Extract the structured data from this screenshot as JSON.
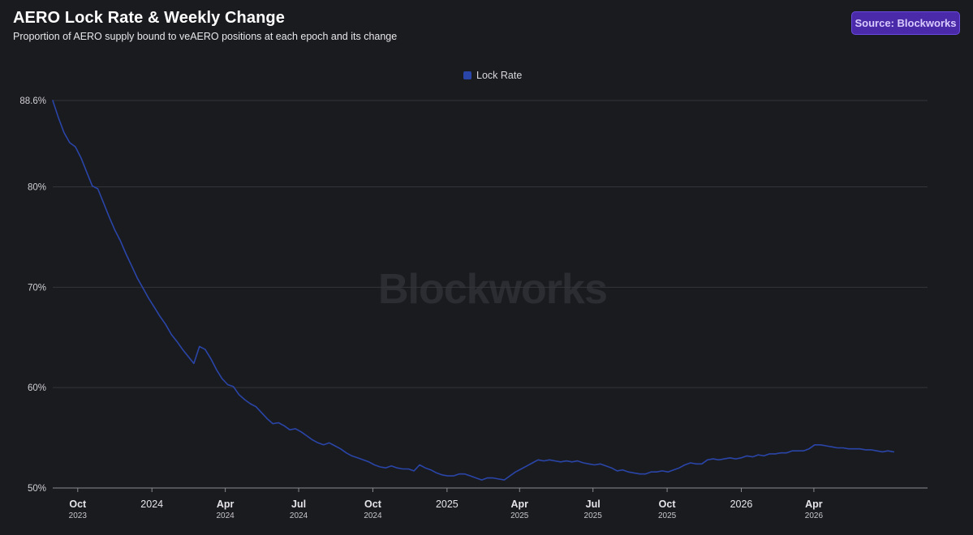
{
  "header": {
    "title": "AERO Lock Rate & Weekly Change",
    "subtitle": "Proportion of AERO supply bound to veAERO positions at each epoch and its change",
    "source_label": "Source: Blockworks"
  },
  "watermark": "Blockworks",
  "colors": {
    "series": "#2a45a8",
    "background": "#1a1b1f",
    "grid": "#34353b",
    "badge": "#4a2aa8"
  },
  "chart_data": {
    "type": "line",
    "title": "AERO Lock Rate & Weekly Change",
    "subtitle": "Proportion of AERO supply bound to veAERO positions at each epoch and its change",
    "legend": {
      "placement": "top-center",
      "entries": [
        "Lock Rate"
      ]
    },
    "grid": true,
    "ylim": [
      50,
      88.6
    ],
    "yticks": [
      {
        "value": 88.6,
        "label": "88.6%"
      },
      {
        "value": 80,
        "label": "80%"
      },
      {
        "value": 70,
        "label": "70%"
      },
      {
        "value": 60,
        "label": "60%"
      },
      {
        "value": 50,
        "label": "50%"
      }
    ],
    "xlim": [
      "2023-08-31",
      "2026-08-20"
    ],
    "xticks": [
      {
        "date": "2023-10-01",
        "label": "Oct",
        "sublabel": "2023"
      },
      {
        "date": "2024-01-01",
        "label": "2024",
        "sublabel": ""
      },
      {
        "date": "2024-04-01",
        "label": "Apr",
        "sublabel": "2024"
      },
      {
        "date": "2024-07-01",
        "label": "Jul",
        "sublabel": "2024"
      },
      {
        "date": "2024-10-01",
        "label": "Oct",
        "sublabel": "2024"
      },
      {
        "date": "2025-01-01",
        "label": "2025",
        "sublabel": ""
      },
      {
        "date": "2025-04-01",
        "label": "Apr",
        "sublabel": "2025"
      },
      {
        "date": "2025-07-01",
        "label": "Jul",
        "sublabel": "2025"
      },
      {
        "date": "2025-10-01",
        "label": "Oct",
        "sublabel": "2025"
      },
      {
        "date": "2026-01-01",
        "label": "2026",
        "sublabel": ""
      },
      {
        "date": "2026-04-01",
        "label": "Apr",
        "sublabel": "2026"
      }
    ],
    "series": [
      {
        "name": "Lock Rate",
        "color": "#2a45a8",
        "points": [
          [
            "2023-08-31",
            88.6
          ],
          [
            "2023-09-07",
            86.9
          ],
          [
            "2023-09-14",
            85.4
          ],
          [
            "2023-09-21",
            84.4
          ],
          [
            "2023-09-28",
            84.0
          ],
          [
            "2023-10-05",
            82.9
          ],
          [
            "2023-10-12",
            81.5
          ],
          [
            "2023-10-19",
            80.1
          ],
          [
            "2023-10-26",
            79.8
          ],
          [
            "2023-11-02",
            78.4
          ],
          [
            "2023-11-09",
            77.0
          ],
          [
            "2023-11-16",
            75.7
          ],
          [
            "2023-11-23",
            74.6
          ],
          [
            "2023-11-30",
            73.3
          ],
          [
            "2023-12-07",
            72.1
          ],
          [
            "2023-12-14",
            70.9
          ],
          [
            "2023-12-21",
            69.9
          ],
          [
            "2023-12-28",
            68.9
          ],
          [
            "2024-01-04",
            68.0
          ],
          [
            "2024-01-11",
            67.1
          ],
          [
            "2024-01-18",
            66.3
          ],
          [
            "2024-01-25",
            65.3
          ],
          [
            "2024-02-01",
            64.6
          ],
          [
            "2024-02-08",
            63.8
          ],
          [
            "2024-02-15",
            63.1
          ],
          [
            "2024-02-22",
            62.4
          ],
          [
            "2024-02-29",
            64.1
          ],
          [
            "2024-03-07",
            63.8
          ],
          [
            "2024-03-14",
            62.9
          ],
          [
            "2024-03-21",
            61.8
          ],
          [
            "2024-03-28",
            60.9
          ],
          [
            "2024-04-04",
            60.3
          ],
          [
            "2024-04-11",
            60.1
          ],
          [
            "2024-04-18",
            59.3
          ],
          [
            "2024-04-25",
            58.8
          ],
          [
            "2024-05-02",
            58.4
          ],
          [
            "2024-05-09",
            58.1
          ],
          [
            "2024-05-16",
            57.5
          ],
          [
            "2024-05-23",
            56.9
          ],
          [
            "2024-05-30",
            56.4
          ],
          [
            "2024-06-06",
            56.5
          ],
          [
            "2024-06-13",
            56.2
          ],
          [
            "2024-06-20",
            55.8
          ],
          [
            "2024-06-27",
            55.9
          ],
          [
            "2024-07-04",
            55.6
          ],
          [
            "2024-07-11",
            55.2
          ],
          [
            "2024-07-18",
            54.8
          ],
          [
            "2024-07-25",
            54.5
          ],
          [
            "2024-08-01",
            54.3
          ],
          [
            "2024-08-08",
            54.5
          ],
          [
            "2024-08-15",
            54.2
          ],
          [
            "2024-08-22",
            53.9
          ],
          [
            "2024-08-29",
            53.5
          ],
          [
            "2024-09-05",
            53.2
          ],
          [
            "2024-09-12",
            53.0
          ],
          [
            "2024-09-19",
            52.8
          ],
          [
            "2024-09-26",
            52.6
          ],
          [
            "2024-10-03",
            52.3
          ],
          [
            "2024-10-10",
            52.1
          ],
          [
            "2024-10-17",
            52.0
          ],
          [
            "2024-10-24",
            52.2
          ],
          [
            "2024-10-31",
            52.0
          ],
          [
            "2024-11-07",
            51.9
          ],
          [
            "2024-11-14",
            51.9
          ],
          [
            "2024-11-21",
            51.7
          ],
          [
            "2024-11-28",
            52.3
          ],
          [
            "2024-12-05",
            52.0
          ],
          [
            "2024-12-12",
            51.8
          ],
          [
            "2024-12-19",
            51.5
          ],
          [
            "2024-12-26",
            51.3
          ],
          [
            "2025-01-02",
            51.2
          ],
          [
            "2025-01-09",
            51.2
          ],
          [
            "2025-01-16",
            51.4
          ],
          [
            "2025-01-23",
            51.4
          ],
          [
            "2025-01-30",
            51.2
          ],
          [
            "2025-02-06",
            51.0
          ],
          [
            "2025-02-13",
            50.8
          ],
          [
            "2025-02-20",
            51.0
          ],
          [
            "2025-02-27",
            51.0
          ],
          [
            "2025-03-06",
            50.9
          ],
          [
            "2025-03-13",
            50.8
          ],
          [
            "2025-03-20",
            51.2
          ],
          [
            "2025-03-27",
            51.6
          ],
          [
            "2025-04-03",
            51.9
          ],
          [
            "2025-04-10",
            52.2
          ],
          [
            "2025-04-17",
            52.5
          ],
          [
            "2025-04-24",
            52.8
          ],
          [
            "2025-05-01",
            52.7
          ],
          [
            "2025-05-08",
            52.8
          ],
          [
            "2025-05-15",
            52.7
          ],
          [
            "2025-05-22",
            52.6
          ],
          [
            "2025-05-29",
            52.7
          ],
          [
            "2025-06-05",
            52.6
          ],
          [
            "2025-06-12",
            52.7
          ],
          [
            "2025-06-19",
            52.5
          ],
          [
            "2025-06-26",
            52.4
          ],
          [
            "2025-07-03",
            52.3
          ],
          [
            "2025-07-10",
            52.4
          ],
          [
            "2025-07-17",
            52.2
          ],
          [
            "2025-07-24",
            52.0
          ],
          [
            "2025-07-31",
            51.7
          ],
          [
            "2025-08-07",
            51.8
          ],
          [
            "2025-08-14",
            51.6
          ],
          [
            "2025-08-21",
            51.5
          ],
          [
            "2025-08-28",
            51.4
          ],
          [
            "2025-09-04",
            51.4
          ],
          [
            "2025-09-11",
            51.6
          ],
          [
            "2025-09-18",
            51.6
          ],
          [
            "2025-09-25",
            51.7
          ],
          [
            "2025-10-02",
            51.6
          ],
          [
            "2025-10-09",
            51.8
          ],
          [
            "2025-10-16",
            52.0
          ],
          [
            "2025-10-23",
            52.3
          ],
          [
            "2025-10-30",
            52.5
          ],
          [
            "2025-11-06",
            52.4
          ],
          [
            "2025-11-13",
            52.4
          ],
          [
            "2025-11-20",
            52.8
          ],
          [
            "2025-11-27",
            52.9
          ],
          [
            "2025-12-04",
            52.8
          ],
          [
            "2025-12-11",
            52.9
          ],
          [
            "2025-12-18",
            53.0
          ],
          [
            "2025-12-25",
            52.9
          ],
          [
            "2026-01-01",
            53.0
          ],
          [
            "2026-01-08",
            53.2
          ],
          [
            "2026-01-15",
            53.1
          ],
          [
            "2026-01-22",
            53.3
          ],
          [
            "2026-01-29",
            53.2
          ],
          [
            "2026-02-05",
            53.4
          ],
          [
            "2026-02-12",
            53.4
          ],
          [
            "2026-02-19",
            53.5
          ],
          [
            "2026-02-26",
            53.5
          ],
          [
            "2026-03-05",
            53.7
          ],
          [
            "2026-03-12",
            53.7
          ],
          [
            "2026-03-19",
            53.7
          ],
          [
            "2026-03-26",
            53.9
          ],
          [
            "2026-04-02",
            54.3
          ],
          [
            "2026-04-09",
            54.3
          ],
          [
            "2026-04-16",
            54.2
          ],
          [
            "2026-04-23",
            54.1
          ],
          [
            "2026-04-30",
            54.0
          ],
          [
            "2026-05-07",
            54.0
          ],
          [
            "2026-05-14",
            53.9
          ],
          [
            "2026-05-21",
            53.9
          ],
          [
            "2026-05-28",
            53.9
          ],
          [
            "2026-06-04",
            53.8
          ],
          [
            "2026-06-11",
            53.8
          ],
          [
            "2026-06-18",
            53.7
          ],
          [
            "2026-06-25",
            53.6
          ],
          [
            "2026-07-02",
            53.7
          ],
          [
            "2026-07-09",
            53.6
          ]
        ]
      }
    ]
  }
}
